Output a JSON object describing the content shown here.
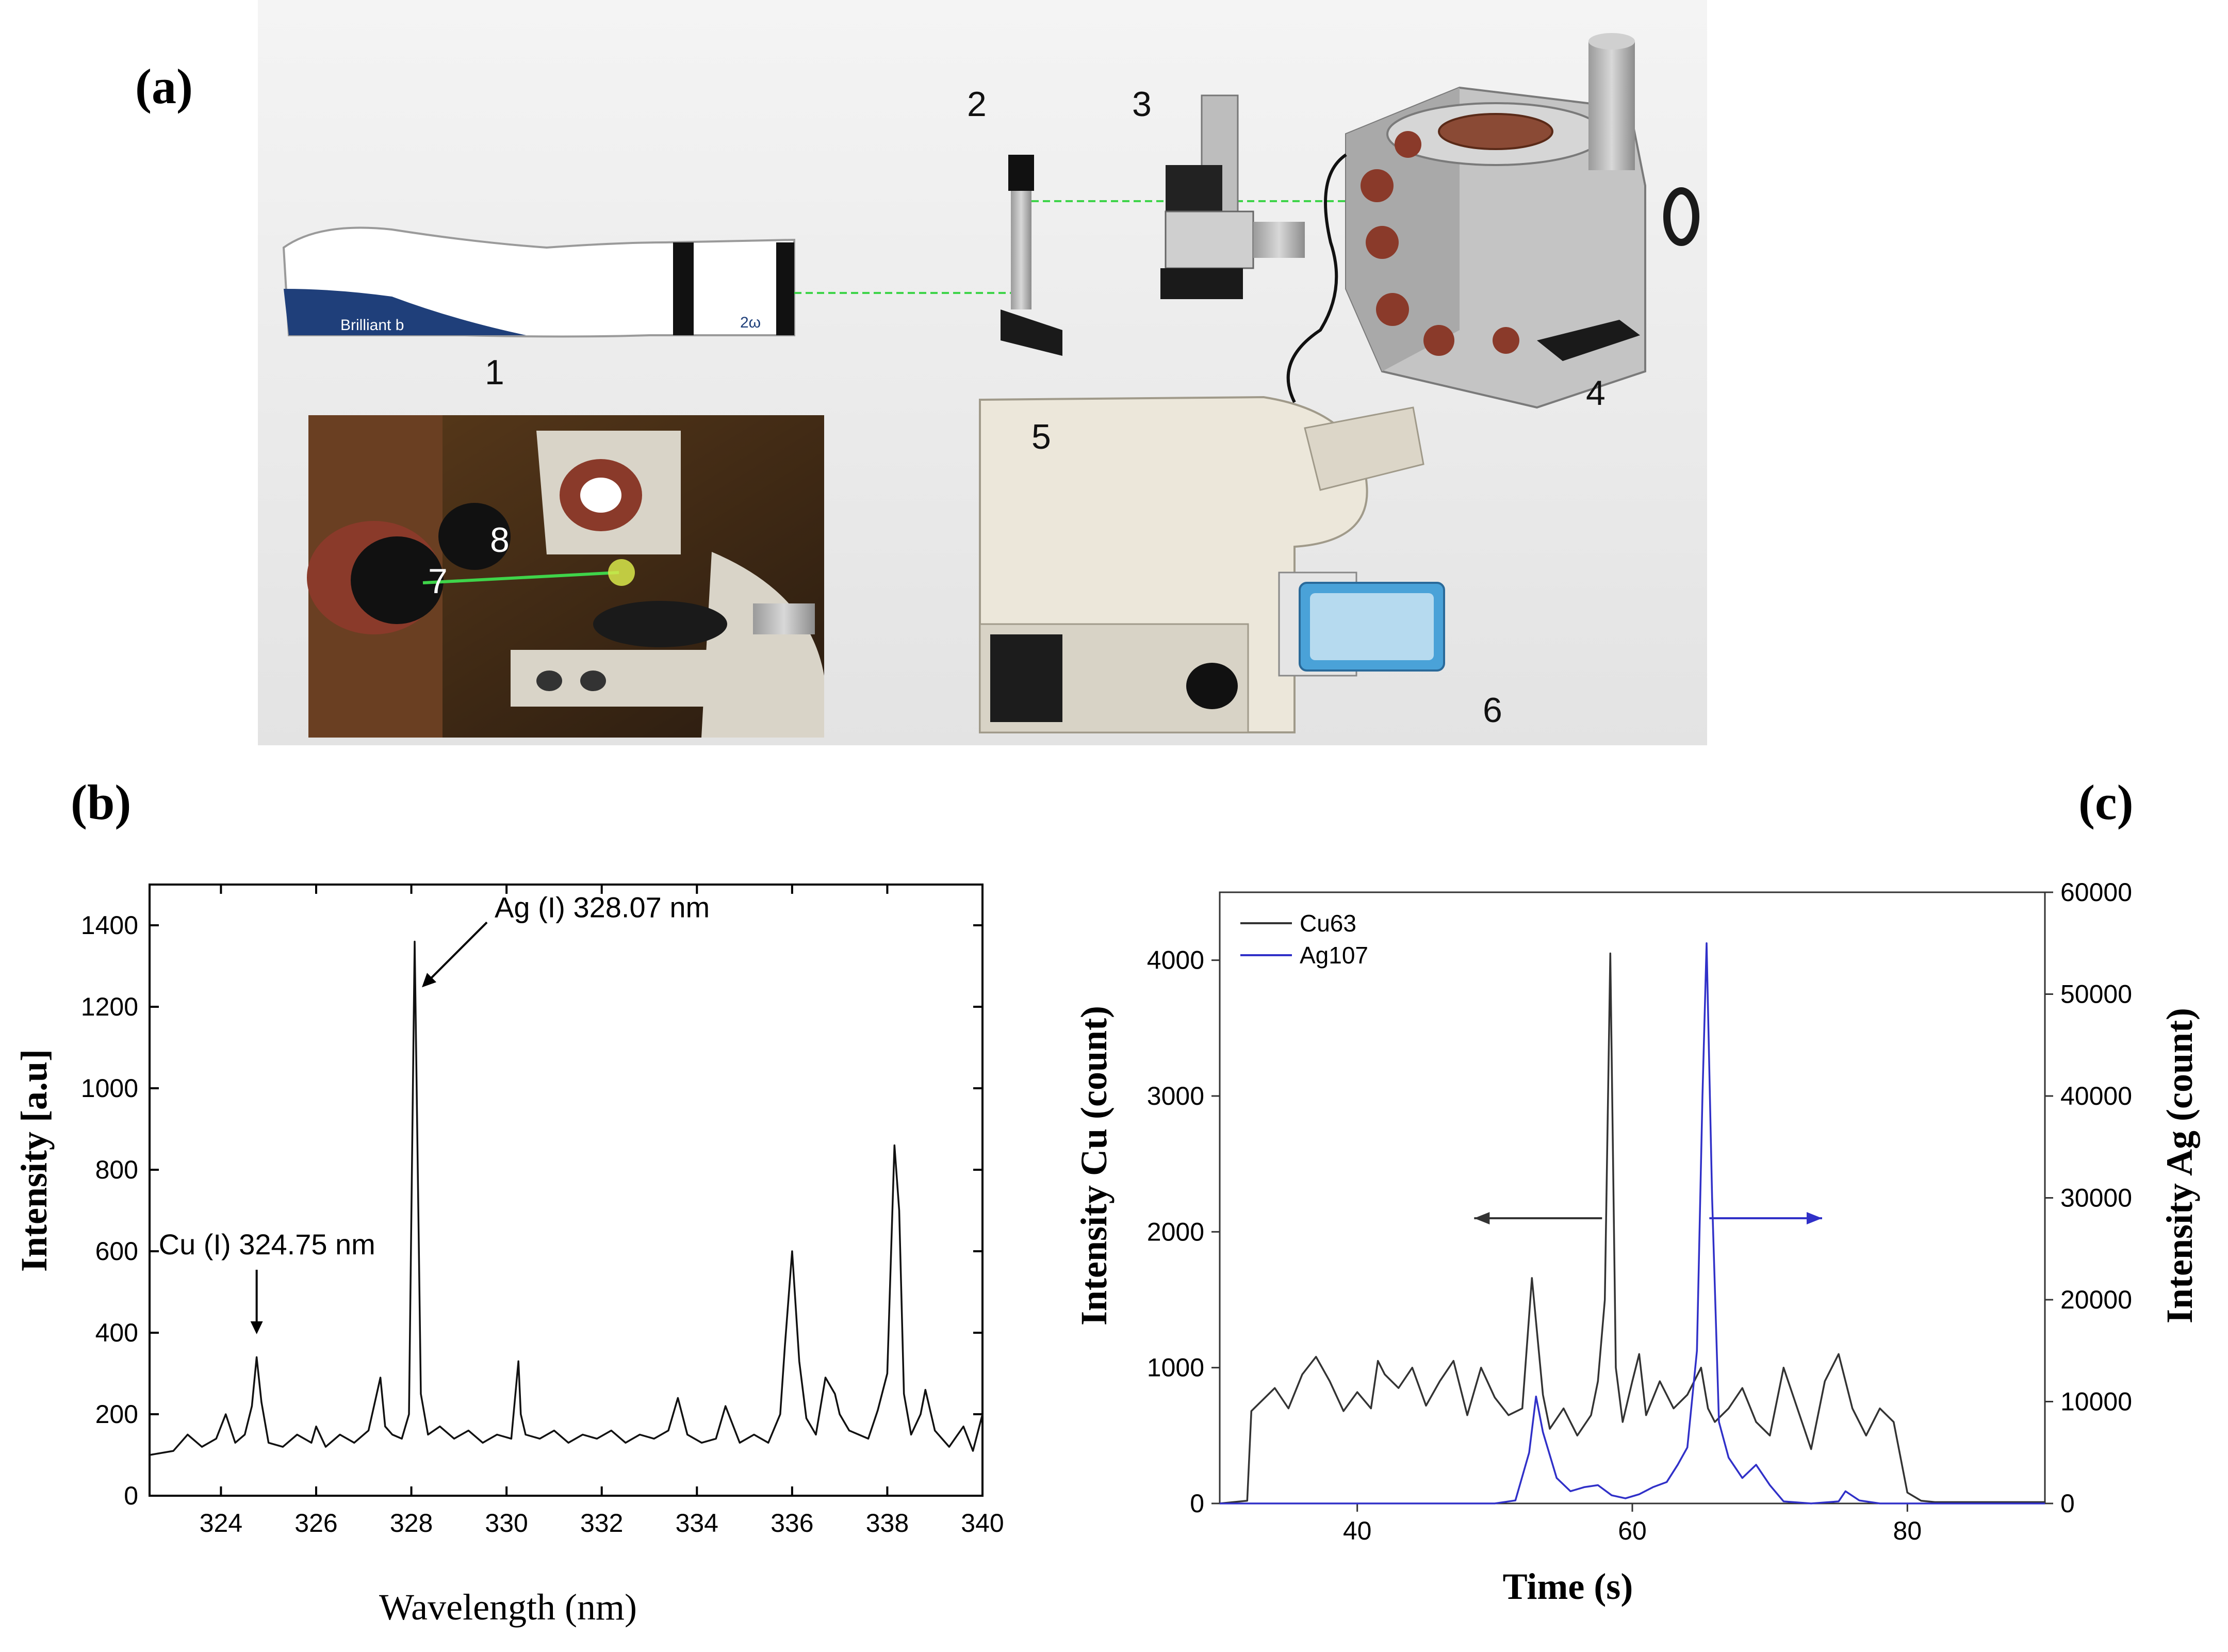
{
  "panels": {
    "a": "(a)",
    "b": "(b)",
    "c": "(c)"
  },
  "setup": {
    "component_labels": [
      "1",
      "2",
      "3",
      "4",
      "5",
      "6",
      "7",
      "8"
    ],
    "laser_brand": "Brilliant b",
    "laser_mode": "2ω",
    "beam_color": "#3fd44a"
  },
  "chart_b": {
    "chart_data": {
      "type": "line",
      "xlabel": "Wavelength (nm)",
      "ylabel": "Intensity [a.u]",
      "xlim": [
        322.5,
        340
      ],
      "ylim": [
        0,
        1500
      ],
      "xticks": [
        "324",
        "326",
        "328",
        "330",
        "332",
        "334",
        "336",
        "338",
        "340"
      ],
      "yticks": [
        "0",
        "200",
        "400",
        "600",
        "800",
        "1000",
        "1200",
        "1400"
      ],
      "grid": false,
      "annotations": [
        {
          "text": "Ag (I) 328.07 nm",
          "x": 328.07,
          "y": 1230
        },
        {
          "text": "Cu (I) 324.75 nm",
          "x": 324.75,
          "y": 330
        }
      ],
      "series": [
        {
          "x": [
            322.5,
            323.0,
            323.3,
            323.6,
            323.9,
            324.1,
            324.3,
            324.5,
            324.65,
            324.75,
            324.85,
            325.0,
            325.3,
            325.6,
            325.9,
            326.0,
            326.2,
            326.5,
            326.8,
            327.1,
            327.35,
            327.45,
            327.6,
            327.8,
            327.95,
            328.07,
            328.2,
            328.35,
            328.6,
            328.9,
            329.2,
            329.5,
            329.8,
            330.1,
            330.25,
            330.3,
            330.4,
            330.7,
            331.0,
            331.3,
            331.6,
            331.9,
            332.2,
            332.5,
            332.8,
            333.1,
            333.4,
            333.6,
            333.8,
            334.1,
            334.4,
            334.6,
            334.9,
            335.2,
            335.5,
            335.75,
            335.85,
            336.0,
            336.15,
            336.3,
            336.5,
            336.7,
            336.9,
            337.0,
            337.2,
            337.4,
            337.6,
            337.8,
            338.0,
            338.15,
            338.25,
            338.35,
            338.5,
            338.7,
            338.8,
            339.0,
            339.3,
            339.6,
            339.8,
            340.0
          ],
          "y": [
            100,
            110,
            150,
            120,
            140,
            200,
            130,
            150,
            220,
            340,
            230,
            130,
            120,
            150,
            130,
            170,
            120,
            150,
            130,
            160,
            290,
            170,
            150,
            140,
            200,
            1360,
            250,
            150,
            170,
            140,
            160,
            130,
            150,
            140,
            330,
            200,
            150,
            140,
            160,
            130,
            150,
            140,
            160,
            130,
            150,
            140,
            160,
            240,
            150,
            130,
            140,
            220,
            130,
            150,
            130,
            200,
            370,
            600,
            330,
            190,
            150,
            290,
            250,
            200,
            160,
            150,
            140,
            210,
            300,
            860,
            700,
            250,
            150,
            200,
            260,
            160,
            120,
            170,
            110,
            200
          ]
        }
      ]
    }
  },
  "chart_c": {
    "chart_data": {
      "type": "line",
      "xlabel": "Time (s)",
      "ylabel": "Intensity Cu (count)",
      "ylabel_right": "Intensity Ag (count)",
      "xlim": [
        30,
        90
      ],
      "ylim": [
        0,
        4500
      ],
      "ylim_right": [
        0,
        60000
      ],
      "xticks": [
        "40",
        "60",
        "80"
      ],
      "yticks": [
        "0",
        "1000",
        "2000",
        "3000",
        "4000"
      ],
      "yticks_right": [
        "0",
        "10000",
        "20000",
        "30000",
        "40000",
        "50000",
        "60000"
      ],
      "legend": "top-left",
      "grid": false,
      "series": [
        {
          "name": "Cu63",
          "axis": "left",
          "color": "#333333",
          "x": [
            30,
            32,
            32.3,
            33,
            34,
            35,
            36,
            37,
            38,
            39,
            40,
            41,
            41.5,
            42,
            43,
            44,
            45,
            46,
            47,
            48,
            49,
            50,
            51,
            52,
            52.7,
            53.5,
            54,
            55,
            56,
            57,
            57.5,
            58,
            58.4,
            58.8,
            59.3,
            60,
            60.5,
            61,
            62,
            63,
            64,
            64.5,
            65,
            65.5,
            66,
            67,
            68,
            69,
            70,
            71,
            72,
            73,
            74,
            75,
            76,
            77,
            78,
            79,
            80,
            81,
            82,
            84,
            86,
            88,
            90
          ],
          "y": [
            0,
            20,
            680,
            750,
            850,
            700,
            950,
            1080,
            900,
            680,
            820,
            700,
            1050,
            950,
            850,
            1000,
            720,
            900,
            1050,
            650,
            1000,
            780,
            650,
            700,
            1660,
            800,
            550,
            700,
            500,
            650,
            900,
            1500,
            4050,
            1000,
            600,
            900,
            1100,
            650,
            900,
            700,
            800,
            900,
            1000,
            700,
            600,
            700,
            850,
            600,
            500,
            1000,
            700,
            400,
            900,
            1100,
            700,
            500,
            700,
            600,
            80,
            20,
            10,
            10,
            10,
            10,
            10
          ]
        },
        {
          "name": "Ag107",
          "axis": "right",
          "color": "#3030c8",
          "x": [
            30,
            40,
            50,
            51.5,
            52.5,
            53.0,
            53.5,
            54.5,
            55.5,
            56.5,
            57.5,
            58.5,
            59.5,
            60.5,
            61.5,
            62.5,
            63.3,
            64.0,
            64.7,
            65.1,
            65.4,
            65.8,
            66.3,
            67.0,
            68.0,
            69.0,
            70.0,
            71.0,
            73.0,
            75.0,
            75.5,
            76.5,
            78.0,
            80.0,
            85.0,
            90.0
          ],
          "y": [
            0,
            0,
            0,
            300,
            5000,
            10500,
            7000,
            2500,
            1200,
            1600,
            1800,
            800,
            500,
            900,
            1600,
            2100,
            3800,
            5500,
            15000,
            40000,
            55000,
            30000,
            8000,
            4500,
            2500,
            3800,
            1800,
            200,
            0,
            200,
            1200,
            300,
            0,
            0,
            0,
            0
          ]
        }
      ]
    }
  }
}
